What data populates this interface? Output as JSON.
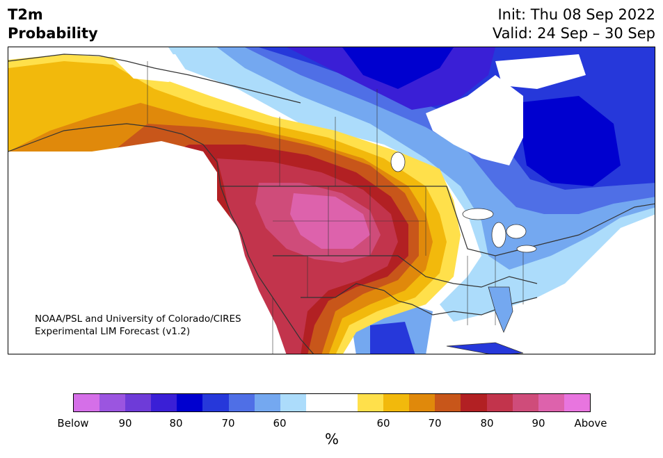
{
  "title": {
    "line1": "T2m",
    "line2": "Probability"
  },
  "info": {
    "init": "Init: Thu 08 Sep 2022",
    "valid": "Valid: 24 Sep – 30 Sep"
  },
  "credit": {
    "line1": "NOAA/PSL and University of Colorado/CIRES",
    "line2": "Experimental LIM Forecast (v1.2)"
  },
  "colorbar": {
    "colors": [
      "#d56fe8",
      "#9b55e0",
      "#6e3bd8",
      "#3a1fd6",
      "#0000cf",
      "#2638da",
      "#4f6fe6",
      "#74a8f0",
      "#acdcfb",
      "#ffffff",
      "#ffffff",
      "#ffe04b",
      "#f2b90c",
      "#e0890b",
      "#c8561a",
      "#b22023",
      "#c2344c",
      "#cf4c7a",
      "#dd62ac",
      "#e875df"
    ],
    "ticks": [
      "Below",
      "90",
      "80",
      "70",
      "60",
      "60",
      "70",
      "80",
      "90",
      "Above"
    ],
    "unit": "%"
  },
  "palette": {
    "below_mid": "#0000cf",
    "below_light": "#acdcfb",
    "above_mid": "#f2b90c",
    "above_high": "#cf4c7a",
    "border": "#333333"
  }
}
